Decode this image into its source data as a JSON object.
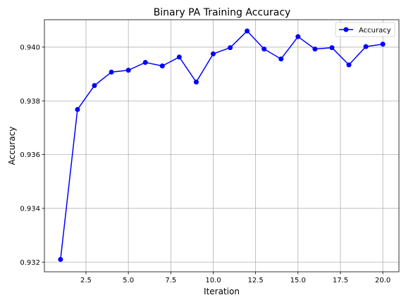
{
  "chart_data": {
    "type": "line",
    "title": "Binary PA Training Accuracy",
    "xlabel": "Iteration",
    "ylabel": "Accuracy",
    "xlim": [
      0.05,
      20.95
    ],
    "ylim": [
      0.93164,
      0.94102
    ],
    "x_ticks": [
      2.5,
      5.0,
      7.5,
      10.0,
      12.5,
      15.0,
      17.5,
      20.0
    ],
    "x_tick_labels": [
      "2.5",
      "5.0",
      "7.5",
      "10.0",
      "12.5",
      "15.0",
      "17.5",
      "20.0"
    ],
    "y_ticks": [
      0.932,
      0.934,
      0.936,
      0.938,
      0.94
    ],
    "y_tick_labels": [
      "0.932",
      "0.934",
      "0.936",
      "0.938",
      "0.940"
    ],
    "grid": true,
    "legend_position": "top-right",
    "x": [
      1,
      2,
      3,
      4,
      5,
      6,
      7,
      8,
      9,
      10,
      11,
      12,
      13,
      14,
      15,
      16,
      17,
      18,
      19,
      20
    ],
    "series": [
      {
        "name": "Accuracy",
        "color": "#0000ff",
        "marker": "circle",
        "values": [
          0.9321,
          0.93768,
          0.93857,
          0.93907,
          0.93914,
          0.93943,
          0.9393,
          0.93963,
          0.9387,
          0.93975,
          0.93998,
          0.9406,
          0.93993,
          0.93956,
          0.94039,
          0.93993,
          0.93998,
          0.93934,
          0.94002,
          0.94011
        ]
      }
    ]
  }
}
